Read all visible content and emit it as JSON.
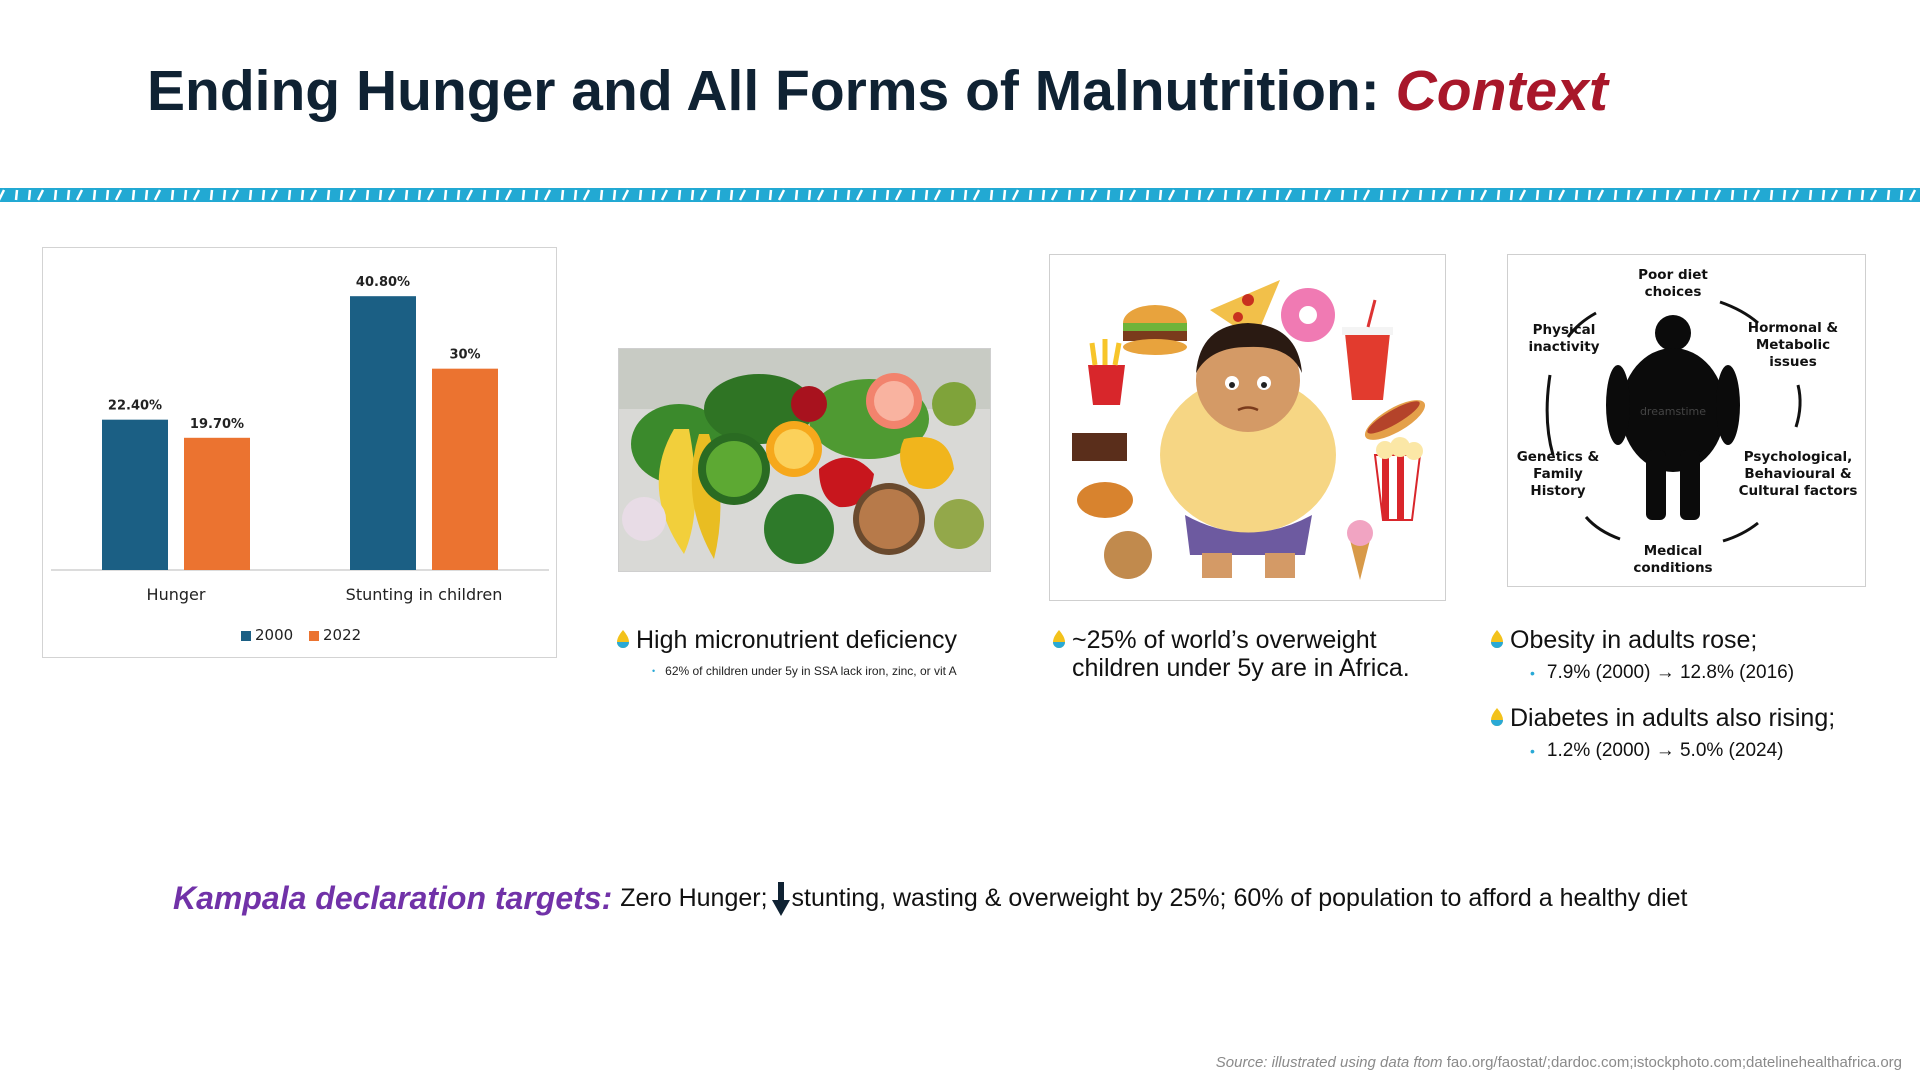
{
  "slide": {
    "title_main": "Ending Hunger and All Forms of Malnutrition:",
    "title_accent": "Context"
  },
  "chart_data": {
    "type": "bar",
    "categories": [
      "Hunger",
      "Stunting in children"
    ],
    "series": [
      {
        "name": "2000",
        "values": [
          22.4,
          40.8
        ],
        "labels": [
          "22.40%",
          "40.80%"
        ],
        "color": "#1b5f84"
      },
      {
        "name": "2022",
        "values": [
          19.7,
          30.0
        ],
        "labels": [
          "19.70%",
          "30%"
        ],
        "color": "#eb7330"
      }
    ],
    "title": "",
    "xlabel": "",
    "ylabel": "",
    "ylim": [
      0,
      45
    ],
    "grid": false,
    "legend": "bottom-center"
  },
  "micronutrient": {
    "heading": "High micronutrient deficiency",
    "detail": "62% of children under 5y in SSA lack iron, zinc, or vit A"
  },
  "overweight": {
    "heading": "~25% of world’s overweight children under 5y are in Africa."
  },
  "obesity_diagram": {
    "labels": {
      "top": "Poor diet choices",
      "top_right": "Hormonal & Metabolic issues",
      "right": "Psychological, Behavioural & Cultural factors",
      "bottom": "Medical conditions",
      "left": "Genetics & Family History",
      "top_left": "Physical inactivity"
    },
    "watermark": "dreamstime"
  },
  "adult_stats": {
    "obesity_heading": "Obesity in adults rose;",
    "obesity_detail": "7.9% (2000) → 12.8% (2016)",
    "diabetes_heading": "Diabetes in adults also rising;",
    "diabetes_detail": "1.2% (2000) → 5.0% (2024)"
  },
  "kampala": {
    "label": "Kampala declaration targets:",
    "text_before_arrow": "Zero Hunger;",
    "text_after_arrow": "stunting, wasting & overweight by 25%; 60% of population to afford a healthy diet"
  },
  "source": {
    "label": "Source: illustrated using data ftom",
    "links": "fao.org/faostat/;dardoc.com;istockphoto.com;datelinehealthafrica.org"
  },
  "icons": {
    "bullet": "yellow-blue-drop-bullet-icon",
    "arrow": "down-arrow-icon"
  }
}
